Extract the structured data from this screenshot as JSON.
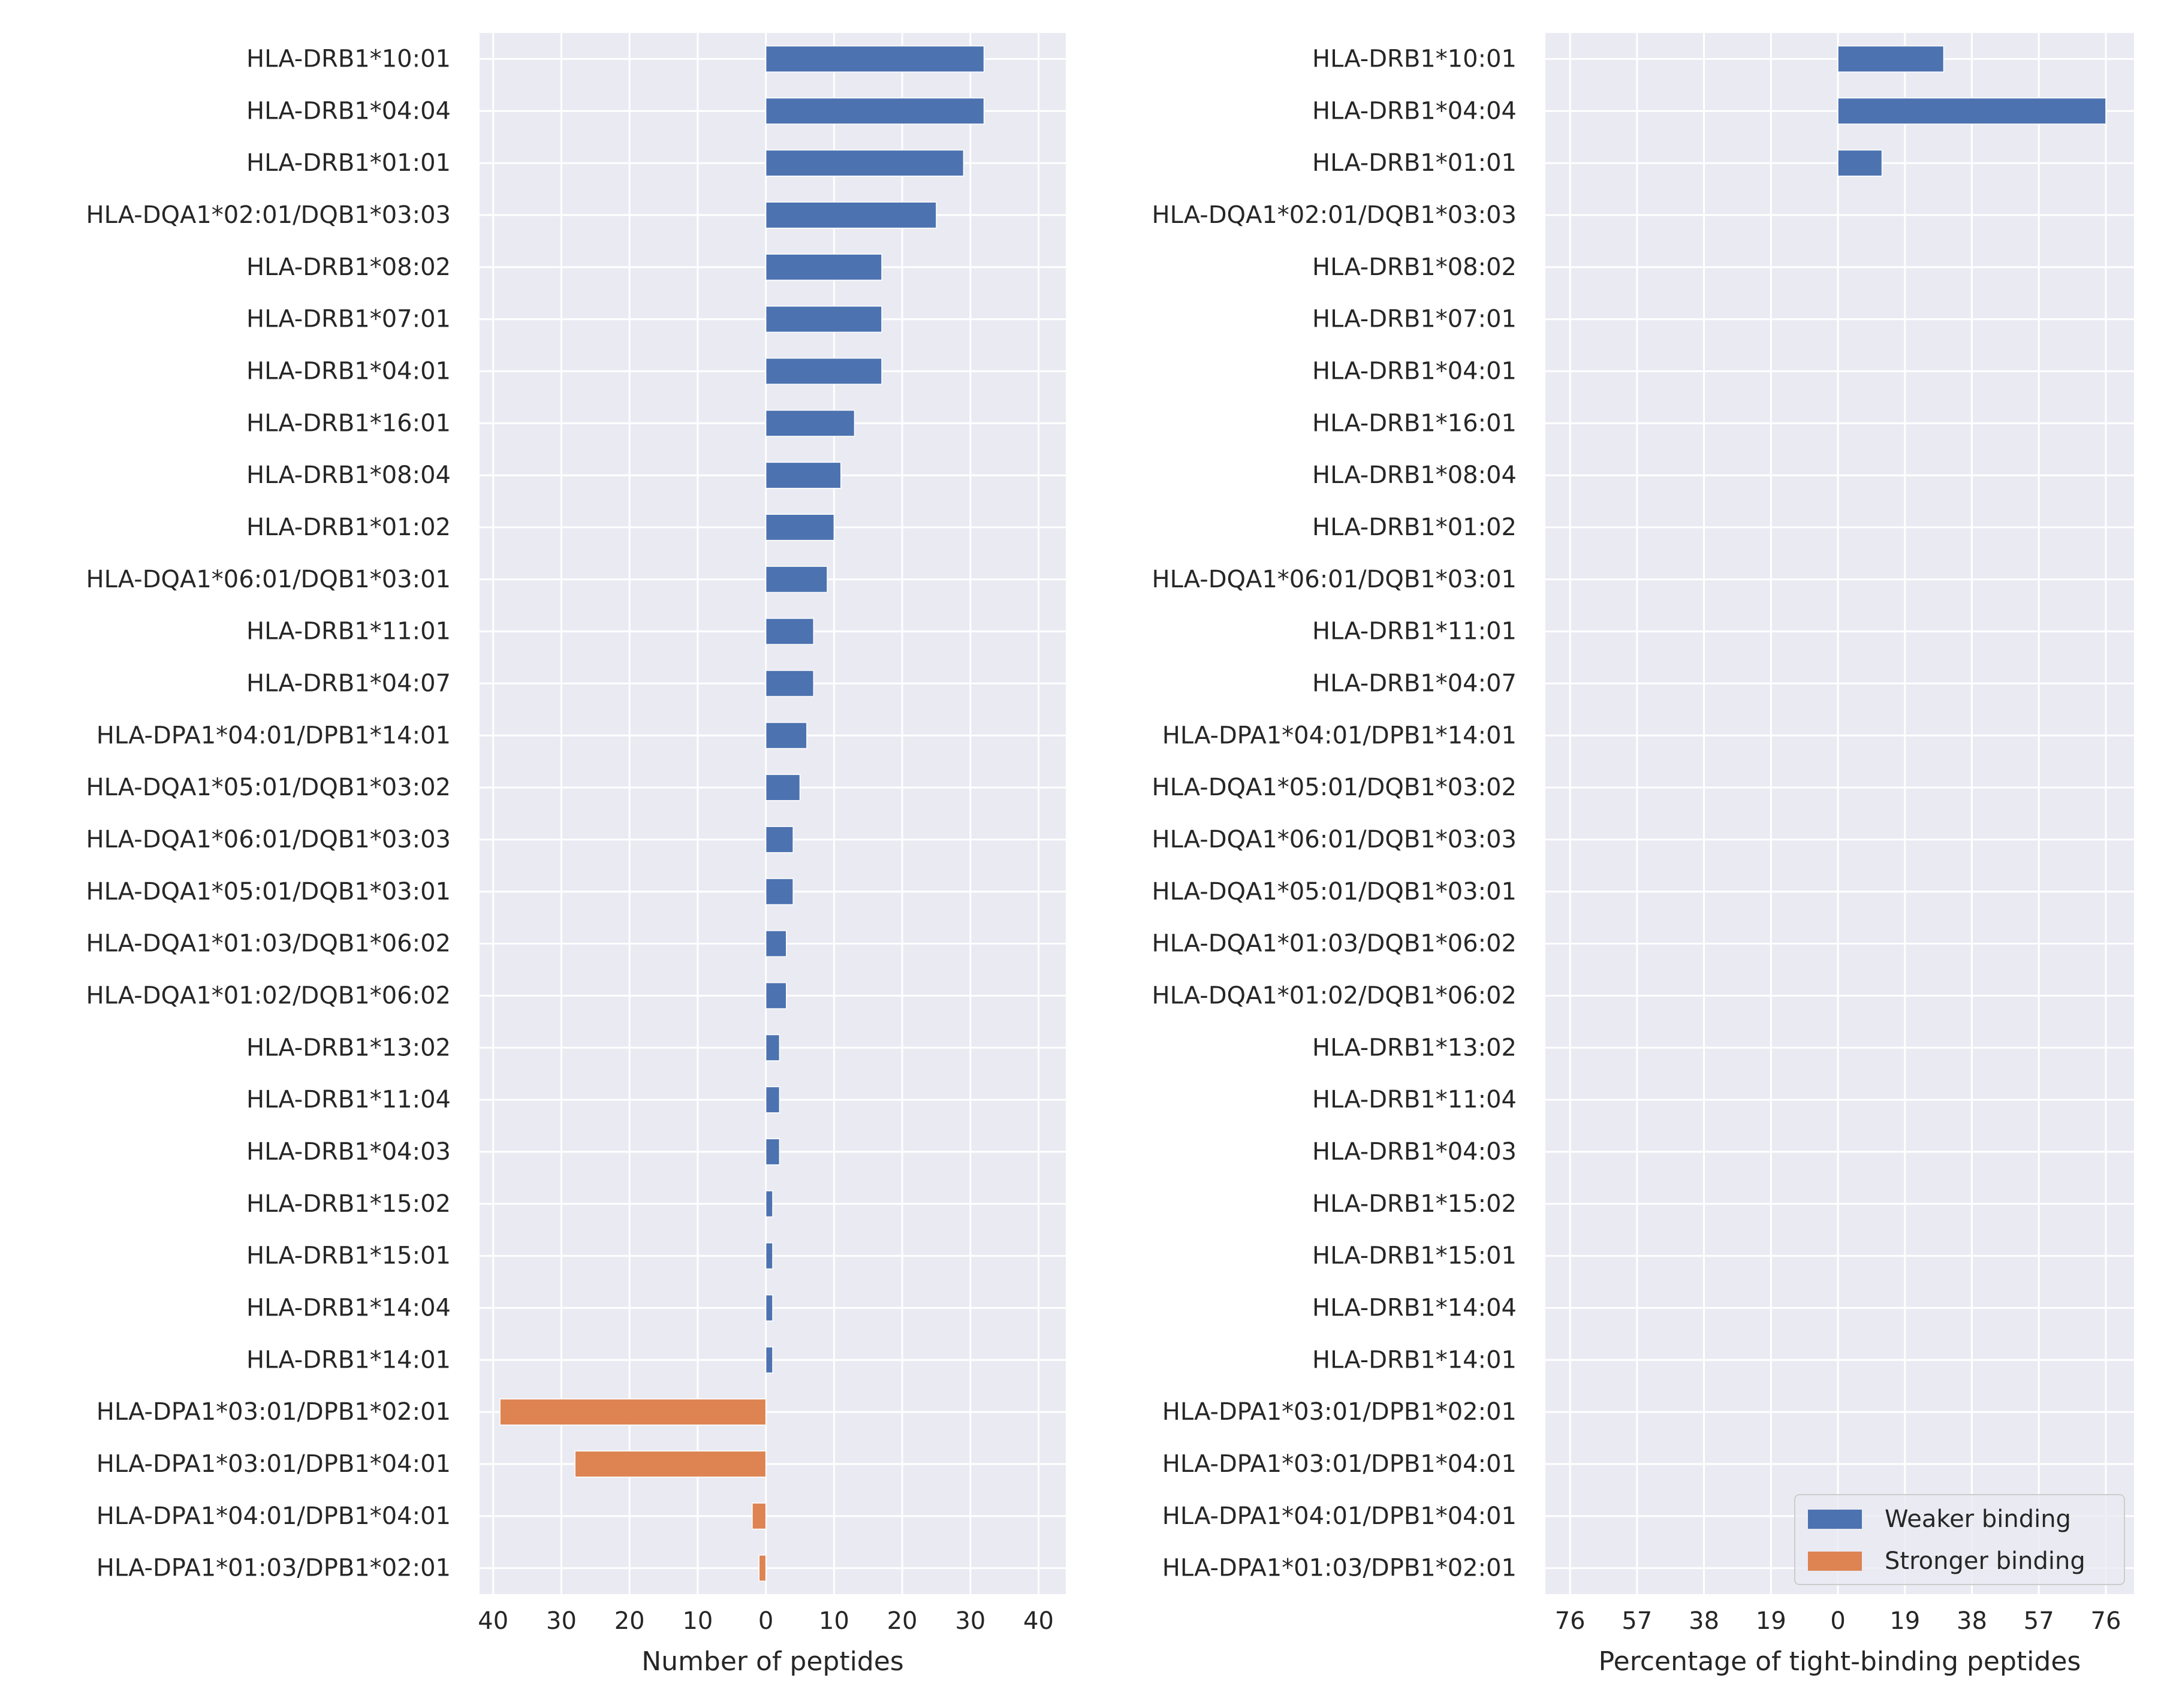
{
  "chart_data": [
    {
      "type": "bar",
      "orientation": "horizontal",
      "xlabel": "Number of peptides",
      "xlim": [
        -42,
        44
      ],
      "xticks": [
        -40,
        -30,
        -20,
        -10,
        0,
        10,
        20,
        30,
        40
      ],
      "xtick_labels": [
        "40",
        "30",
        "20",
        "10",
        "0",
        "10",
        "20",
        "30",
        "40"
      ],
      "grid": true,
      "categories": [
        "HLA-DRB1*10:01",
        "HLA-DRB1*04:04",
        "HLA-DRB1*01:01",
        "HLA-DQA1*02:01/DQB1*03:03",
        "HLA-DRB1*08:02",
        "HLA-DRB1*07:01",
        "HLA-DRB1*04:01",
        "HLA-DRB1*16:01",
        "HLA-DRB1*08:04",
        "HLA-DRB1*01:02",
        "HLA-DQA1*06:01/DQB1*03:01",
        "HLA-DRB1*11:01",
        "HLA-DRB1*04:07",
        "HLA-DPA1*04:01/DPB1*14:01",
        "HLA-DQA1*05:01/DQB1*03:02",
        "HLA-DQA1*06:01/DQB1*03:03",
        "HLA-DQA1*05:01/DQB1*03:01",
        "HLA-DQA1*01:03/DQB1*06:02",
        "HLA-DQA1*01:02/DQB1*06:02",
        "HLA-DRB1*13:02",
        "HLA-DRB1*11:04",
        "HLA-DRB1*04:03",
        "HLA-DRB1*15:02",
        "HLA-DRB1*15:01",
        "HLA-DRB1*14:04",
        "HLA-DRB1*14:01",
        "HLA-DPA1*03:01/DPB1*02:01",
        "HLA-DPA1*03:01/DPB1*04:01",
        "HLA-DPA1*04:01/DPB1*04:01",
        "HLA-DPA1*01:03/DPB1*02:01"
      ],
      "series": [
        {
          "name": "Weaker binding",
          "color": "#4c72b0",
          "values": [
            32,
            32,
            29,
            25,
            17,
            17,
            17,
            13,
            11,
            10,
            9,
            7,
            7,
            6,
            5,
            4,
            4,
            3,
            3,
            2,
            2,
            2,
            1,
            1,
            1,
            1,
            0,
            0,
            0,
            0
          ]
        },
        {
          "name": "Stronger binding",
          "color": "#dd8452",
          "values": [
            0,
            0,
            0,
            0,
            0,
            0,
            0,
            0,
            0,
            0,
            0,
            0,
            0,
            0,
            0,
            0,
            0,
            0,
            0,
            0,
            0,
            0,
            0,
            0,
            0,
            0,
            -39,
            -28,
            -2,
            -1
          ]
        }
      ]
    },
    {
      "type": "bar",
      "orientation": "horizontal",
      "xlabel": "Percentage of tight-binding peptides",
      "xlim": [
        -83,
        84
      ],
      "xticks": [
        -76,
        -57,
        -38,
        -19,
        0,
        19,
        38,
        57,
        76
      ],
      "xtick_labels": [
        "76",
        "57",
        "38",
        "19",
        "0",
        "19",
        "38",
        "57",
        "76"
      ],
      "grid": true,
      "legend": "bottom-right",
      "categories": [
        "HLA-DRB1*10:01",
        "HLA-DRB1*04:04",
        "HLA-DRB1*01:01",
        "HLA-DQA1*02:01/DQB1*03:03",
        "HLA-DRB1*08:02",
        "HLA-DRB1*07:01",
        "HLA-DRB1*04:01",
        "HLA-DRB1*16:01",
        "HLA-DRB1*08:04",
        "HLA-DRB1*01:02",
        "HLA-DQA1*06:01/DQB1*03:01",
        "HLA-DRB1*11:01",
        "HLA-DRB1*04:07",
        "HLA-DPA1*04:01/DPB1*14:01",
        "HLA-DQA1*05:01/DQB1*03:02",
        "HLA-DQA1*06:01/DQB1*03:03",
        "HLA-DQA1*05:01/DQB1*03:01",
        "HLA-DQA1*01:03/DQB1*06:02",
        "HLA-DQA1*01:02/DQB1*06:02",
        "HLA-DRB1*13:02",
        "HLA-DRB1*11:04",
        "HLA-DRB1*04:03",
        "HLA-DRB1*15:02",
        "HLA-DRB1*15:01",
        "HLA-DRB1*14:04",
        "HLA-DRB1*14:01",
        "HLA-DPA1*03:01/DPB1*02:01",
        "HLA-DPA1*03:01/DPB1*04:01",
        "HLA-DPA1*04:01/DPB1*04:01",
        "HLA-DPA1*01:03/DPB1*02:01"
      ],
      "series": [
        {
          "name": "Weaker binding",
          "color": "#4c72b0",
          "values": [
            30,
            76,
            12.5,
            0,
            0,
            0,
            0,
            0,
            0,
            0,
            0,
            0,
            0,
            0,
            0,
            0,
            0,
            0,
            0,
            0,
            0,
            0,
            0,
            0,
            0,
            0,
            0,
            0,
            0,
            0
          ]
        },
        {
          "name": "Stronger binding",
          "color": "#dd8452",
          "values": [
            0,
            0,
            0,
            0,
            0,
            0,
            0,
            0,
            0,
            0,
            0,
            0,
            0,
            0,
            0,
            0,
            0,
            0,
            0,
            0,
            0,
            0,
            0,
            0,
            0,
            0,
            0,
            0,
            0,
            0
          ]
        }
      ]
    }
  ]
}
